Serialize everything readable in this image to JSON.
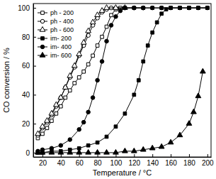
{
  "chart_data": {
    "type": "line",
    "x_label": "Temperature / °C",
    "y_label": "CO conversion / %",
    "xlim": [
      10,
      204
    ],
    "ylim": [
      -3,
      103
    ],
    "xticks": [
      20,
      40,
      60,
      80,
      100,
      120,
      140,
      160,
      180,
      200
    ],
    "yticks": [
      0,
      20,
      40,
      60,
      80,
      100
    ],
    "grid": false,
    "legend": "upper left",
    "series": [
      {
        "name": "ph - 200",
        "color": "#000000",
        "marker": "square-open",
        "line_style": "solid",
        "x": [
          15,
          20,
          25,
          30,
          35,
          40,
          45,
          50,
          55,
          60,
          65,
          70,
          75,
          80,
          85,
          90,
          95,
          100,
          105,
          110,
          120,
          130,
          140,
          150,
          160,
          170,
          180,
          190,
          200
        ],
        "values": [
          10,
          13,
          17,
          22,
          27,
          32,
          38,
          43,
          48,
          52,
          56,
          61,
          67,
          74,
          80,
          87,
          95,
          99,
          100,
          100,
          100,
          100,
          100,
          100,
          100,
          100,
          100,
          100,
          100
        ]
      },
      {
        "name": "ph - 400",
        "color": "#000000",
        "marker": "circle-open",
        "line_style": "solid",
        "x": [
          15,
          20,
          25,
          30,
          35,
          40,
          45,
          50,
          55,
          60,
          65,
          70,
          75,
          80,
          85,
          90,
          95,
          100,
          110,
          120,
          130
        ],
        "values": [
          12,
          17,
          21,
          26,
          32,
          38,
          45,
          52,
          59,
          67,
          74,
          81,
          88,
          93,
          97,
          99,
          100,
          100,
          100,
          100,
          100
        ]
      },
      {
        "name": "ph - 600",
        "color": "#000000",
        "marker": "triangle-open",
        "line_style": "solid",
        "x": [
          15,
          20,
          25,
          30,
          35,
          40,
          45,
          50,
          55,
          60,
          65,
          70,
          75,
          80,
          85,
          90,
          100,
          110
        ],
        "values": [
          13,
          18,
          22,
          27,
          33,
          38,
          45,
          53,
          60,
          68,
          76,
          84,
          90,
          95,
          98,
          100,
          100,
          100
        ]
      },
      {
        "name": "im- 200",
        "color": "#000000",
        "marker": "square",
        "line_style": "solid",
        "x": [
          15,
          20,
          30,
          40,
          50,
          60,
          70,
          80,
          90,
          100,
          110,
          120,
          125,
          130,
          135,
          140,
          145,
          150,
          155,
          160,
          170,
          180,
          190,
          200
        ],
        "values": [
          0,
          0,
          1,
          1,
          2,
          3,
          5,
          7,
          11,
          18,
          27,
          40,
          50,
          63,
          74,
          83,
          90,
          96,
          99,
          100,
          100,
          100,
          100,
          100
        ]
      },
      {
        "name": "im- 400",
        "color": "#000000",
        "marker": "circle",
        "line_style": "solid",
        "x": [
          15,
          20,
          30,
          40,
          50,
          60,
          65,
          70,
          75,
          80,
          85,
          90,
          95,
          100,
          105,
          110,
          120,
          130,
          140,
          150,
          160,
          170,
          180,
          190,
          200
        ],
        "values": [
          1,
          2,
          3,
          5,
          9,
          16,
          21,
          28,
          38,
          50,
          63,
          77,
          88,
          94,
          98,
          100,
          100,
          100,
          100,
          100,
          100,
          100,
          100,
          100,
          100
        ]
      },
      {
        "name": "im- 600",
        "color": "#000000",
        "marker": "triangle",
        "line_style": "solid",
        "x": [
          15,
          20,
          30,
          40,
          50,
          60,
          70,
          80,
          90,
          100,
          110,
          120,
          130,
          140,
          150,
          160,
          170,
          180,
          185,
          190,
          195
        ],
        "values": [
          0,
          0,
          0,
          0,
          0,
          0,
          0,
          0,
          0,
          0,
          1,
          1,
          2,
          3,
          4,
          7,
          12,
          20,
          28,
          39,
          56
        ]
      }
    ]
  }
}
